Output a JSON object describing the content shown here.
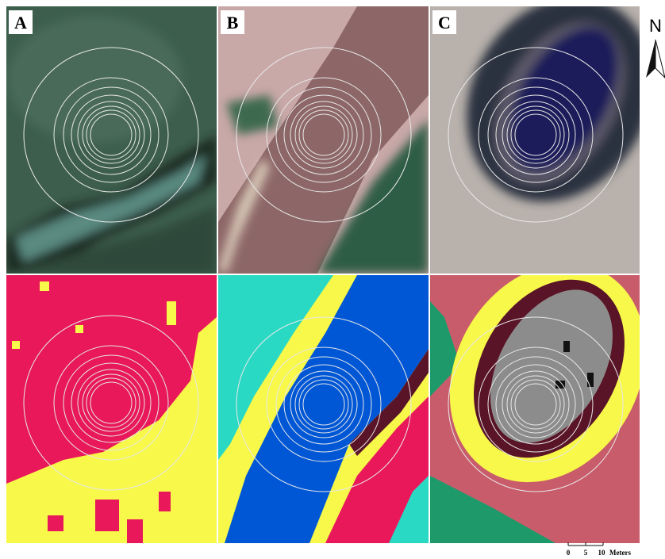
{
  "panels": [
    {
      "label": "A"
    },
    {
      "label": "B"
    },
    {
      "label": "C"
    }
  ],
  "north_arrow": {
    "label": "N"
  },
  "scale_bar": {
    "labels": [
      "0",
      "5",
      "10"
    ],
    "unit": "Meters"
  }
}
